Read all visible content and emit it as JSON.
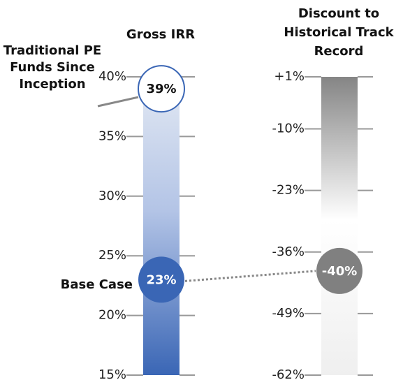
{
  "chart_data": [
    {
      "type": "scale",
      "title": "Gross IRR",
      "color": "#3a66b5",
      "ylim": [
        15,
        40
      ],
      "yticks": [
        {
          "value": 15,
          "label": "15%"
        },
        {
          "value": 20,
          "label": "20%"
        },
        {
          "value": 25,
          "label": "25%"
        },
        {
          "value": 30,
          "label": "30%"
        },
        {
          "value": 35,
          "label": "35%"
        },
        {
          "value": 40,
          "label": "40%"
        }
      ],
      "categories": [
        "Traditional PE Funds Since Inception",
        "Base Case"
      ],
      "values": [
        39,
        23
      ],
      "value_labels": [
        "39%",
        "23%"
      ]
    },
    {
      "type": "scale",
      "title": "Discount to Historical Track Record",
      "color": "#808080",
      "ylim": [
        -62,
        1
      ],
      "yticks": [
        {
          "value": -62,
          "label": "-62%"
        },
        {
          "value": -49,
          "label": "-49%"
        },
        {
          "value": -36,
          "label": "-36%"
        },
        {
          "value": -23,
          "label": "-23%"
        },
        {
          "value": -10,
          "label": "-10%"
        },
        {
          "value": 1,
          "label": "+1%"
        }
      ],
      "values": [
        -40
      ],
      "value_labels": [
        "-40%"
      ]
    }
  ]
}
